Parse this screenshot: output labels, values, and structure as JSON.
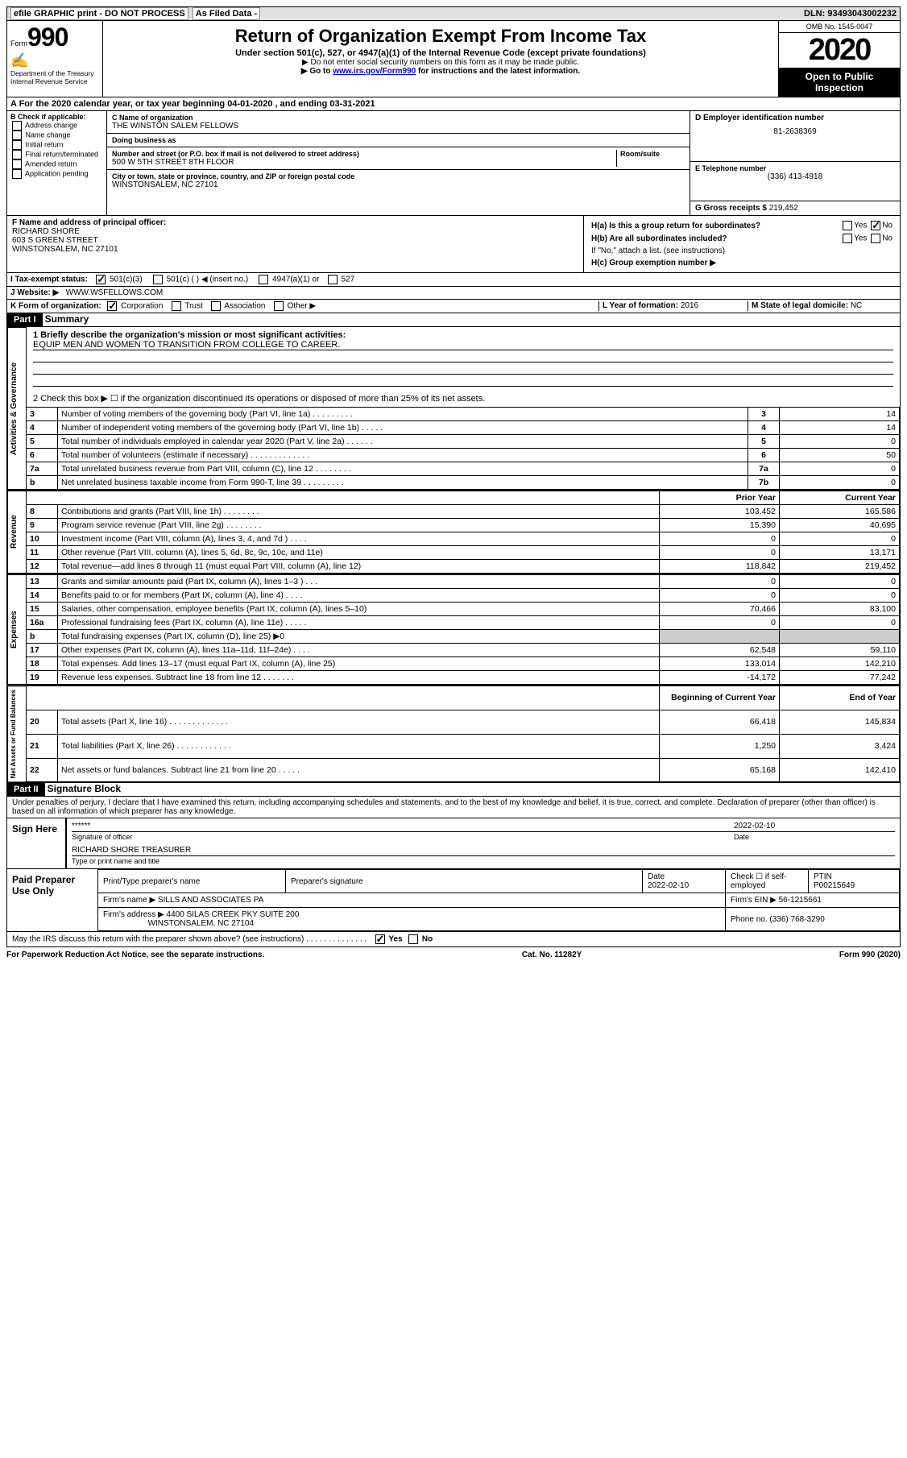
{
  "topbar": {
    "efile": "efile GRAPHIC print - DO NOT PROCESS",
    "asfiled": "As Filed Data -",
    "dln_label": "DLN:",
    "dln": "93493043002232"
  },
  "header": {
    "form_label": "Form",
    "form_num": "990",
    "dept1": "Department of the Treasury",
    "dept2": "Internal Revenue Service",
    "title": "Return of Organization Exempt From Income Tax",
    "sub": "Under section 501(c), 527, or 4947(a)(1) of the Internal Revenue Code (except private foundations)",
    "note1": "▶ Do not enter social security numbers on this form as it may be made public.",
    "note2_pre": "▶ Go to ",
    "note2_link": "www.irs.gov/Form990",
    "note2_post": " for instructions and the latest information.",
    "omb": "OMB No. 1545-0047",
    "year": "2020",
    "open": "Open to Public Inspection"
  },
  "sectionA": "A   For the 2020 calendar year, or tax year beginning 04-01-2020   , and ending 03-31-2021",
  "sectionB": {
    "label": "B Check if applicable:",
    "items": [
      "Address change",
      "Name change",
      "Initial return",
      "Final return/terminated",
      "Amended return",
      "Application pending"
    ]
  },
  "sectionC": {
    "name_label": "C Name of organization",
    "name": "THE WINSTON SALEM FELLOWS",
    "dba_label": "Doing business as",
    "dba": "",
    "addr_label": "Number and street (or P.O. box if mail is not delivered to street address)",
    "room_label": "Room/suite",
    "addr": "500 W 5TH STREET 8TH FLOOR",
    "city_label": "City or town, state or province, country, and ZIP or foreign postal code",
    "city": "WINSTONSALEM, NC  27101"
  },
  "sectionD": {
    "label": "D Employer identification number",
    "value": "81-2638369"
  },
  "sectionE": {
    "label": "E Telephone number",
    "value": "(336) 413-4918"
  },
  "sectionG": {
    "label": "G Gross receipts $",
    "value": "219,452"
  },
  "sectionF": {
    "label": "F  Name and address of principal officer:",
    "line1": "RICHARD SHORE",
    "line2": "603 S GREEN STREET",
    "line3": "WINSTONSALEM, NC  27101"
  },
  "sectionH": {
    "ha": "H(a)  Is this a group return for subordinates?",
    "hb": "H(b)  Are all subordinates included?",
    "hb_note": "If \"No,\" attach a list. (see instructions)",
    "hc": "H(c)  Group exemption number ▶",
    "yes": "Yes",
    "no": "No"
  },
  "sectionI": {
    "label": "I   Tax-exempt status:",
    "opt1": "501(c)(3)",
    "opt2": "501(c) (  ) ◀ (insert no.)",
    "opt3": "4947(a)(1) or",
    "opt4": "527"
  },
  "sectionJ": {
    "label": "J   Website: ▶",
    "value": "WWW.WSFELLOWS.COM"
  },
  "sectionK": {
    "label": "K Form of organization:",
    "opts": [
      "Corporation",
      "Trust",
      "Association",
      "Other ▶"
    ]
  },
  "sectionL": {
    "label": "L Year of formation:",
    "value": "2016"
  },
  "sectionM": {
    "label": "M State of legal domicile:",
    "value": "NC"
  },
  "partI": {
    "hdr": "Part I",
    "title": "Summary",
    "line1_label": "1 Briefly describe the organization's mission or most significant activities:",
    "line1_text": "EQUIP MEN AND WOMEN TO TRANSITION FROM COLLEGE TO CAREER.",
    "line2": "2   Check this box ▶ ☐  if the organization discontinued its operations or disposed of more than 25% of its net assets.",
    "vert_ag": "Activities & Governance",
    "vert_rev": "Revenue",
    "vert_exp": "Expenses",
    "vert_net": "Net Assets or Fund Balances",
    "rows_ag": [
      {
        "n": "3",
        "d": "Number of voting members of the governing body (Part VI, line 1a)  .   .   .   .   .   .   .   .   .",
        "r": "3",
        "v": "14"
      },
      {
        "n": "4",
        "d": "Number of independent voting members of the governing body (Part VI, line 1b)   .   .   .   .   .",
        "r": "4",
        "v": "14"
      },
      {
        "n": "5",
        "d": "Total number of individuals employed in calendar year 2020 (Part V, line 2a)   .   .   .   .   .   .",
        "r": "5",
        "v": "0"
      },
      {
        "n": "6",
        "d": "Total number of volunteers (estimate if necessary)   .   .   .   .   .   .   .   .   .   .   .   .   .",
        "r": "6",
        "v": "50"
      },
      {
        "n": "7a",
        "d": "Total unrelated business revenue from Part VIII, column (C), line 12   .   .   .   .   .   .   .   .",
        "r": "7a",
        "v": "0"
      },
      {
        "n": "b",
        "d": "Net unrelated business taxable income from Form 990-T, line 39   .   .   .   .   .   .   .   .   .",
        "r": "7b",
        "v": "0"
      }
    ],
    "col_prior": "Prior Year",
    "col_curr": "Current Year",
    "rows_rev": [
      {
        "n": "8",
        "d": "Contributions and grants (Part VIII, line 1h)   .   .   .   .   .   .   .   .",
        "p": "103,452",
        "c": "165,586"
      },
      {
        "n": "9",
        "d": "Program service revenue (Part VIII, line 2g)   .   .   .   .   .   .   .   .",
        "p": "15,390",
        "c": "40,695"
      },
      {
        "n": "10",
        "d": "Investment income (Part VIII, column (A), lines 3, 4, and 7d )   .   .   .   .",
        "p": "0",
        "c": "0"
      },
      {
        "n": "11",
        "d": "Other revenue (Part VIII, column (A), lines 5, 6d, 8c, 9c, 10c, and 11e)",
        "p": "0",
        "c": "13,171"
      },
      {
        "n": "12",
        "d": "Total revenue—add lines 8 through 11 (must equal Part VIII, column (A), line 12)",
        "p": "118,842",
        "c": "219,452"
      }
    ],
    "rows_exp": [
      {
        "n": "13",
        "d": "Grants and similar amounts paid (Part IX, column (A), lines 1–3 )   .   .   .",
        "p": "0",
        "c": "0"
      },
      {
        "n": "14",
        "d": "Benefits paid to or for members (Part IX, column (A), line 4)   .   .   .   .",
        "p": "0",
        "c": "0"
      },
      {
        "n": "15",
        "d": "Salaries, other compensation, employee benefits (Part IX, column (A), lines 5–10)",
        "p": "70,466",
        "c": "83,100"
      },
      {
        "n": "16a",
        "d": "Professional fundraising fees (Part IX, column (A), line 11e)   .   .   .   .   .",
        "p": "0",
        "c": "0"
      },
      {
        "n": "b",
        "d": "Total fundraising expenses (Part IX, column (D), line 25)  ▶0",
        "p": "",
        "c": ""
      },
      {
        "n": "17",
        "d": "Other expenses (Part IX, column (A), lines 11a–11d, 11f–24e)   .   .   .   .",
        "p": "62,548",
        "c": "59,110"
      },
      {
        "n": "18",
        "d": "Total expenses. Add lines 13–17 (must equal Part IX, column (A), line 25)",
        "p": "133,014",
        "c": "142,210"
      },
      {
        "n": "19",
        "d": "Revenue less expenses. Subtract line 18 from line 12  .   .   .   .   .   .   .",
        "p": "-14,172",
        "c": "77,242"
      }
    ],
    "col_beg": "Beginning of Current Year",
    "col_end": "End of Year",
    "rows_net": [
      {
        "n": "20",
        "d": "Total assets (Part X, line 16)   .   .   .   .   .   .   .   .   .   .   .   .   .",
        "p": "66,418",
        "c": "145,834"
      },
      {
        "n": "21",
        "d": "Total liabilities (Part X, line 26)  .   .   .   .   .   .   .   .   .   .   .   .",
        "p": "1,250",
        "c": "3,424"
      },
      {
        "n": "22",
        "d": "Net assets or fund balances. Subtract line 21 from line 20  .   .   .   .   .",
        "p": "65,168",
        "c": "142,410"
      }
    ]
  },
  "partII": {
    "hdr": "Part II",
    "title": "Signature Block",
    "perjury": "Under penalties of perjury, I declare that I have examined this return, including accompanying schedules and statements, and to the best of my knowledge and belief, it is true, correct, and complete. Declaration of preparer (other than officer) is based on all information of which preparer has any knowledge.",
    "sign_here": "Sign Here",
    "sig_stars": "******",
    "sig_officer_label": "Signature of officer",
    "sig_date": "2022-02-10",
    "sig_date_label": "Date",
    "officer_name": "RICHARD SHORE TREASURER",
    "officer_label": "Type or print name and title",
    "paid_prep": "Paid Preparer Use Only",
    "prep_name_label": "Print/Type preparer's name",
    "prep_sig_label": "Preparer's signature",
    "prep_date_label": "Date",
    "prep_date": "2022-02-10",
    "check_if": "Check ☐ if self-employed",
    "ptin_label": "PTIN",
    "ptin": "P00215649",
    "firm_name_label": "Firm's name   ▶",
    "firm_name": "SILLS AND ASSOCIATES PA",
    "firm_ein_label": "Firm's EIN ▶",
    "firm_ein": "56-1215661",
    "firm_addr_label": "Firm's address ▶",
    "firm_addr1": "4400 SILAS CREEK PKY SUITE 200",
    "firm_addr2": "WINSTONSALEM, NC  27104",
    "phone_label": "Phone no.",
    "phone": "(336) 768-3290",
    "discuss": "May the IRS discuss this return with the preparer shown above? (see instructions)   .   .   .   .   .   .   .   .   .   .   .   .   .   .",
    "yes": "Yes",
    "no": "No"
  },
  "footer": {
    "left": "For Paperwork Reduction Act Notice, see the separate instructions.",
    "mid": "Cat. No. 11282Y",
    "right": "Form 990 (2020)"
  }
}
